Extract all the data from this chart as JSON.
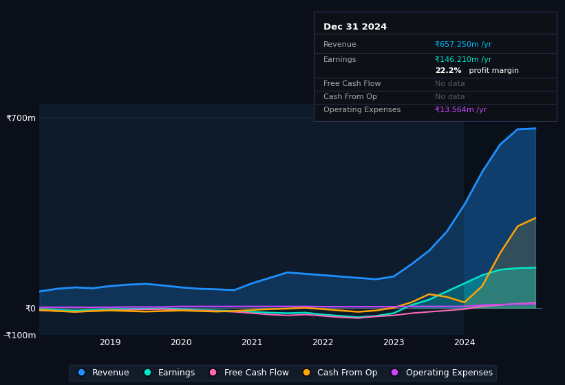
{
  "bg_color": "#0a0f1a",
  "chart_bg": "#0d1b2a",
  "grid_color": "#1e2d3d",
  "title_box": {
    "date": "Dec 31 2024",
    "rows": [
      {
        "label": "Revenue",
        "value": "₹657.250m /yr",
        "value_color": "#00bfff"
      },
      {
        "label": "Earnings",
        "value": "₹146.210m /yr",
        "value_color": "#00e5c8"
      },
      {
        "label": "",
        "value": "22.2% profit margin",
        "value_color": "#ffffff"
      },
      {
        "label": "Free Cash Flow",
        "value": "No data",
        "value_color": "#555566"
      },
      {
        "label": "Cash From Op",
        "value": "No data",
        "value_color": "#555566"
      },
      {
        "label": "Operating Expenses",
        "value": "₹13.564m /yr",
        "value_color": "#cc44ff"
      }
    ]
  },
  "x_years": [
    2018.0,
    2018.25,
    2018.5,
    2018.75,
    2019.0,
    2019.25,
    2019.5,
    2019.75,
    2020.0,
    2020.25,
    2020.5,
    2020.75,
    2021.0,
    2021.25,
    2021.5,
    2021.75,
    2022.0,
    2022.25,
    2022.5,
    2022.75,
    2023.0,
    2023.25,
    2023.5,
    2023.75,
    2024.0,
    2024.25,
    2024.5,
    2024.75,
    2025.0
  ],
  "revenue": [
    60,
    70,
    75,
    72,
    80,
    85,
    88,
    82,
    75,
    70,
    68,
    65,
    90,
    110,
    130,
    125,
    120,
    115,
    110,
    105,
    115,
    160,
    210,
    280,
    380,
    500,
    600,
    657,
    660
  ],
  "earnings": [
    -5,
    -8,
    -10,
    -8,
    -6,
    -5,
    -4,
    -3,
    -5,
    -8,
    -10,
    -12,
    -15,
    -18,
    -20,
    -18,
    -25,
    -30,
    -35,
    -30,
    -20,
    10,
    30,
    60,
    90,
    120,
    140,
    146,
    148
  ],
  "free_cash_flow": [
    -10,
    -12,
    -15,
    -12,
    -10,
    -8,
    -6,
    -5,
    -8,
    -10,
    -12,
    -15,
    -20,
    -25,
    -28,
    -25,
    -30,
    -35,
    -38,
    -32,
    -28,
    -20,
    -15,
    -10,
    -5,
    5,
    10,
    15,
    18
  ],
  "cash_from_op": [
    -8,
    -12,
    -15,
    -12,
    -10,
    -12,
    -14,
    -12,
    -10,
    -12,
    -14,
    -12,
    -8,
    -5,
    -3,
    0,
    -5,
    -10,
    -15,
    -10,
    0,
    20,
    50,
    40,
    20,
    80,
    200,
    300,
    330
  ],
  "operating_expenses": [
    2,
    2,
    2,
    2,
    2,
    3,
    3,
    3,
    5,
    5,
    5,
    5,
    5,
    5,
    5,
    5,
    4,
    4,
    4,
    4,
    4,
    5,
    5,
    5,
    5,
    10,
    12,
    13.5,
    14
  ],
  "shade_start": 2024.0,
  "ylim": [
    -100,
    750
  ],
  "yticks": [
    -100,
    0,
    700
  ],
  "ytick_labels": [
    "-₹100m",
    "₹0",
    "₹700m"
  ],
  "xticks": [
    2019,
    2020,
    2021,
    2022,
    2023,
    2024
  ],
  "legend": [
    {
      "label": "Revenue",
      "color": "#1e90ff"
    },
    {
      "label": "Earnings",
      "color": "#00e5c8"
    },
    {
      "label": "Free Cash Flow",
      "color": "#ff69b4"
    },
    {
      "label": "Cash From Op",
      "color": "#ffa500"
    },
    {
      "label": "Operating Expenses",
      "color": "#cc44ff"
    }
  ]
}
